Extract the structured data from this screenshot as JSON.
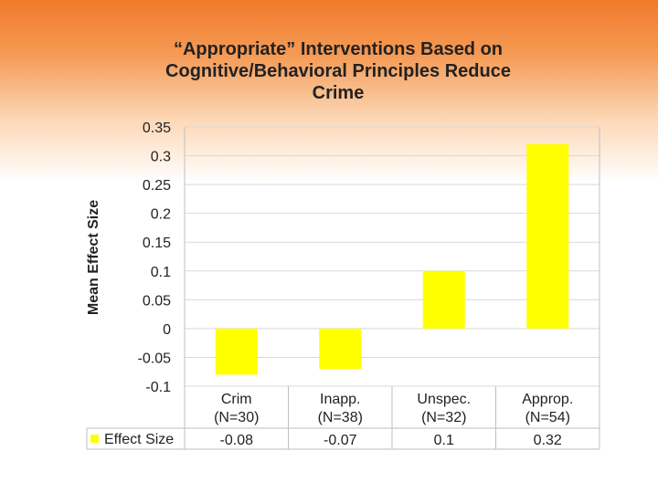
{
  "title_lines": [
    "“Appropriate” Interventions Based on",
    "Cognitive/Behavioral Principles Reduce",
    "Crime"
  ],
  "colors": {
    "bar": "#ffff00",
    "grid": "#d9d9d9",
    "border": "#bfbfbf"
  },
  "chart_data": {
    "type": "bar",
    "title": "“Appropriate” Interventions Based on Cognitive/Behavioral Principles Reduce Crime",
    "ylabel": "Mean Effect Size",
    "xlabel": "",
    "categories": [
      [
        "Crim",
        "(N=30)"
      ],
      [
        "Inapp.",
        "(N=38)"
      ],
      [
        "Unspec.",
        "(N=32)"
      ],
      [
        "Approp.",
        "(N=54)"
      ]
    ],
    "series": [
      {
        "name": "Effect Size",
        "values": [
          -0.08,
          -0.07,
          0.1,
          0.32
        ],
        "value_labels": [
          "-0.08",
          "-0.07",
          "0.1",
          "0.32"
        ]
      }
    ],
    "ylim": [
      -0.1,
      0.35
    ],
    "ticks": [
      "0.35",
      "0.3",
      "0.25",
      "0.2",
      "0.15",
      "0.1",
      "0.05",
      "0",
      "-0.05",
      "-0.1"
    ],
    "grid": true,
    "data_table": true
  }
}
